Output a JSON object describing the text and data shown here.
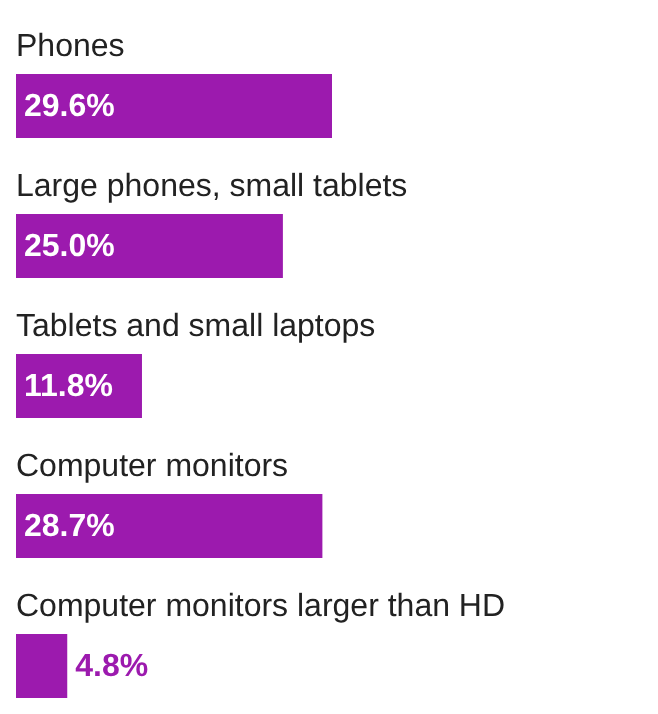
{
  "chart_data": {
    "type": "bar",
    "orientation": "horizontal",
    "categories": [
      "Phones",
      "Large phones, small tablets",
      "Tablets and small laptops",
      "Computer monitors",
      "Computer monitors larger than HD"
    ],
    "values": [
      29.6,
      25.0,
      11.8,
      28.7,
      4.8
    ],
    "value_labels": [
      "29.6%",
      "25.0%",
      "11.8%",
      "28.7%",
      "4.8%"
    ],
    "color": "#9c1aae"
  }
}
